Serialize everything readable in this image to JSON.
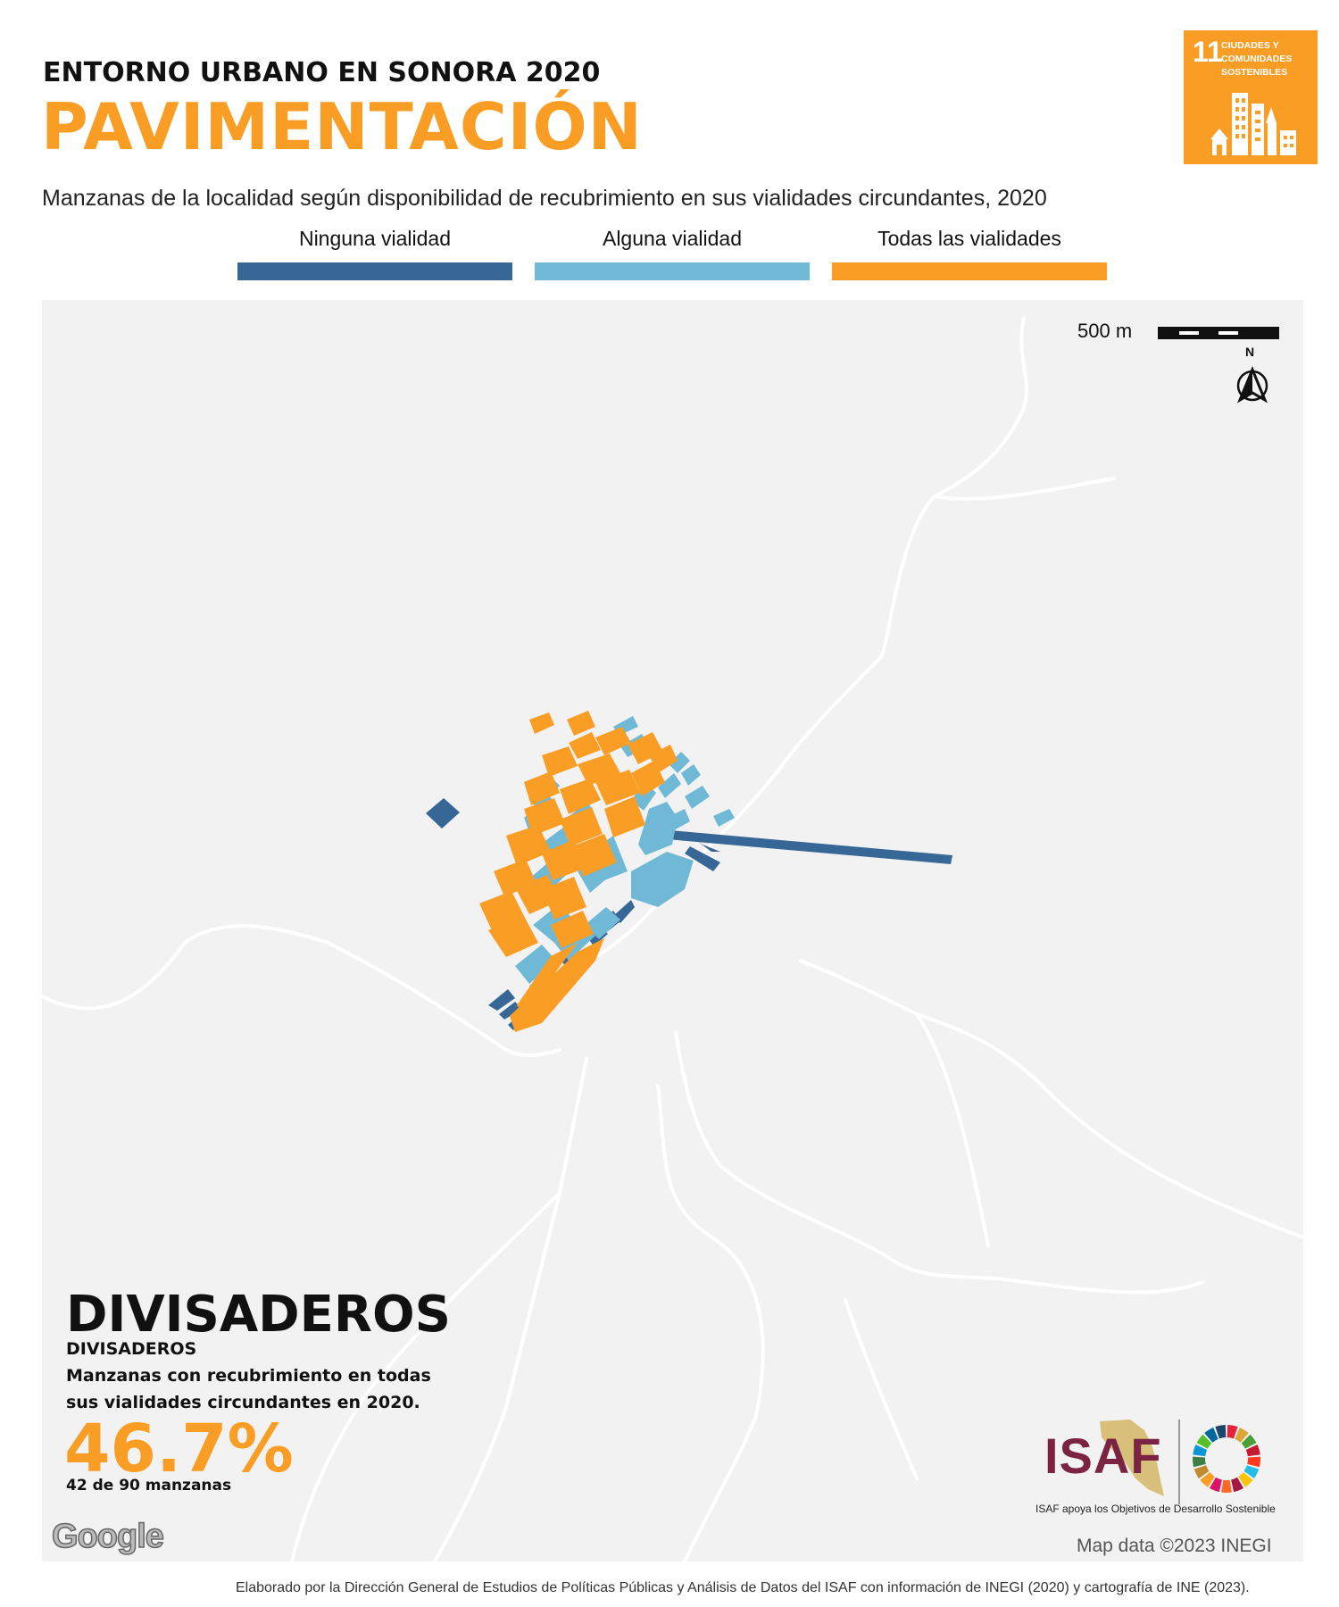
{
  "header": {
    "kicker": "ENTORNO URBANO EN SONORA 2020",
    "title": "PAVIMENTACIÓN",
    "subtitle": "Manzanas de la localidad según disponibilidad de recubrimiento en sus vialidades circundantes, 2020"
  },
  "sdg_badge": {
    "number": "11",
    "text": "CIUDADES Y COMUNIDADES SOSTENIBLES",
    "color": "#F99D24"
  },
  "legend": [
    {
      "label": "Ninguna vialidad",
      "color": "#376796"
    },
    {
      "label": "Alguna vialidad",
      "color": "#70B9D6"
    },
    {
      "label": "Todas las vialidades",
      "color": "#F99D24"
    }
  ],
  "map": {
    "scale_label": "500 m",
    "north_label": "N",
    "background": "#F2F2F2",
    "road_color": "#FFFFFF",
    "attribution": "Map data ©2023 INEGI",
    "provider": "Google"
  },
  "locality": {
    "name": "DIVISADEROS",
    "subname": "DIVISADEROS",
    "description": "Manzanas con recubrimiento en todas sus vialidades circundantes en 2020.",
    "percent": "46.7%",
    "count_text": "42 de 90 manzanas"
  },
  "partner": {
    "logo_text": "ISAF",
    "caption": "ISAF apoya los Objetivos de Desarrollo Sostenible",
    "sdg_wheel_colors": [
      "#E5243B",
      "#DDA63A",
      "#4C9F38",
      "#C5192D",
      "#FF3A21",
      "#26BDE2",
      "#FCC30B",
      "#A21942",
      "#FD6925",
      "#DD1367",
      "#FD9D24",
      "#BF8B2E",
      "#3F7E44",
      "#0A97D9",
      "#56C02B",
      "#00689D",
      "#19486A"
    ]
  },
  "footer": "Elaborado por la Dirección General de Estudios de Políticas Públicas y Análisis de Datos del ISAF con información de INEGI (2020) y cartografía de INE (2023)."
}
